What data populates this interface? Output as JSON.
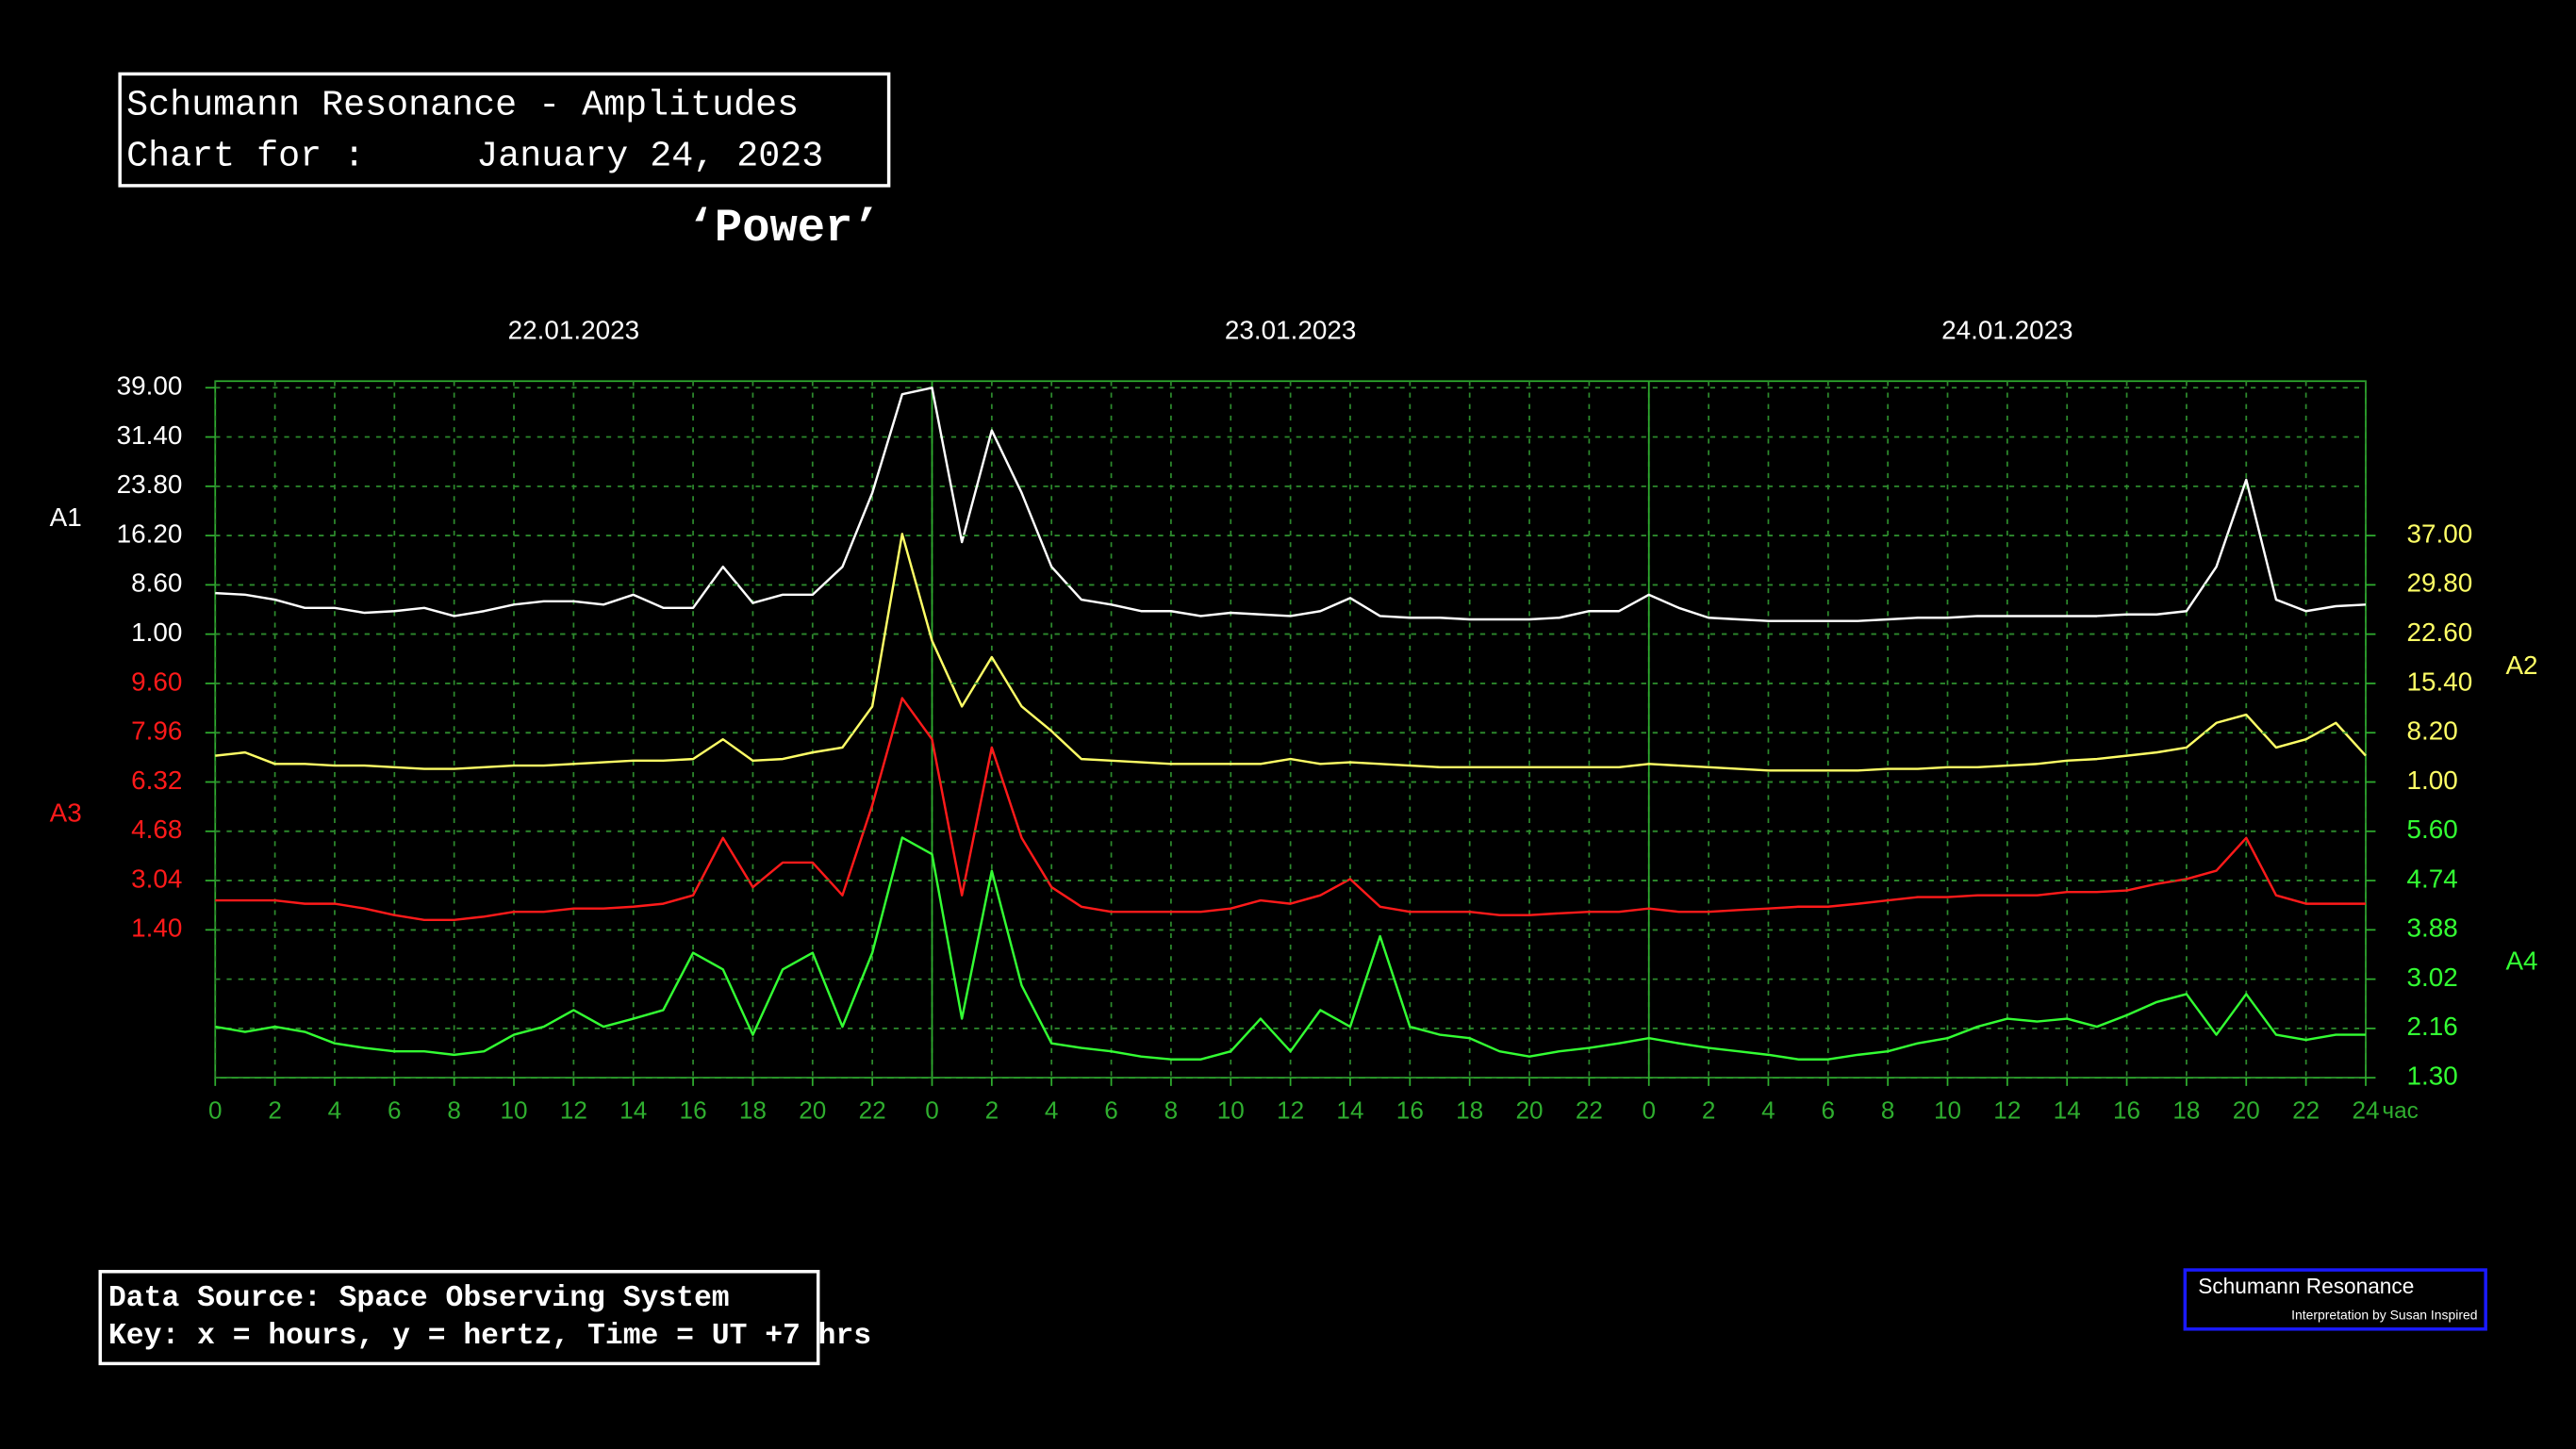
{
  "header": {
    "title": "Schumann Resonance - Amplitudes",
    "chart_for": "Chart for :",
    "date": "January 24, 2023",
    "subtitle": "‘Power’"
  },
  "footer": {
    "source": "Data Source: Space Observing System",
    "key": "Key: x = hours, y = hertz, Time = UT +7 hrs"
  },
  "logo": {
    "title": "Schumann Resonance",
    "credit": "Interpretation by Susan Inspired"
  },
  "chart_data": {
    "type": "line",
    "dates": [
      "22.01.2023",
      "23.01.2023",
      "24.01.2023"
    ],
    "x_unit": "час",
    "xlim": [
      0,
      72
    ],
    "xticks": [
      0,
      2,
      4,
      6,
      8,
      10,
      12,
      14,
      16,
      18,
      20,
      22,
      {
        "value": 24,
        "label": "0"
      },
      {
        "value": 26,
        "label": "2"
      },
      {
        "value": 28,
        "label": "4"
      },
      {
        "value": 30,
        "label": "6"
      },
      {
        "value": 32,
        "label": "8"
      },
      {
        "value": 34,
        "label": "10"
      },
      {
        "value": 36,
        "label": "12"
      },
      {
        "value": 38,
        "label": "14"
      },
      {
        "value": 40,
        "label": "16"
      },
      {
        "value": 42,
        "label": "18"
      },
      {
        "value": 44,
        "label": "20"
      },
      {
        "value": 46,
        "label": "22"
      },
      {
        "value": 48,
        "label": "0"
      },
      {
        "value": 50,
        "label": "2"
      },
      {
        "value": 52,
        "label": "4"
      },
      {
        "value": 54,
        "label": "6"
      },
      {
        "value": 56,
        "label": "8"
      },
      {
        "value": 58,
        "label": "10"
      },
      {
        "value": 60,
        "label": "12"
      },
      {
        "value": 62,
        "label": "14"
      },
      {
        "value": 64,
        "label": "16"
      },
      {
        "value": 66,
        "label": "18"
      },
      {
        "value": 68,
        "label": "20"
      },
      {
        "value": 70,
        "label": "22"
      },
      {
        "value": 72,
        "label": "24"
      }
    ],
    "grid": true,
    "x": [
      0,
      1,
      2,
      3,
      4,
      5,
      6,
      7,
      8,
      9,
      10,
      11,
      12,
      13,
      14,
      15,
      16,
      17,
      18,
      19,
      20,
      21,
      22,
      23,
      24,
      25,
      26,
      27,
      28,
      29,
      30,
      31,
      32,
      33,
      34,
      35,
      36,
      37,
      38,
      39,
      40,
      41,
      42,
      43,
      44,
      45,
      46,
      47,
      48,
      49,
      50,
      51,
      52,
      53,
      54,
      55,
      56,
      57,
      58,
      59,
      60,
      61,
      62,
      63,
      64,
      65,
      66,
      67,
      68,
      69,
      70,
      71,
      72
    ],
    "series": [
      {
        "name": "A1",
        "color": "#ffffff",
        "axis_side": "left",
        "ylim": [
          -67.4,
          39
        ],
        "yticks": [
          {
            "value": 39,
            "label": "39.00"
          },
          {
            "value": 31.4,
            "label": "31.40"
          },
          {
            "value": 23.8,
            "label": "23.80"
          },
          {
            "value": 16.2,
            "label": "16.20"
          },
          {
            "value": 8.6,
            "label": "8.60"
          },
          {
            "value": 1,
            "label": "1.00"
          }
        ],
        "values": [
          7.33,
          7.08,
          6.32,
          5.05,
          5.05,
          4.29,
          4.55,
          5.05,
          3.79,
          4.55,
          5.56,
          6.07,
          6.07,
          5.56,
          7.08,
          5.05,
          5.05,
          11.39,
          5.81,
          7.08,
          7.08,
          11.39,
          22.79,
          37.99,
          39.0,
          15.19,
          32.41,
          22.79,
          11.39,
          6.32,
          5.56,
          4.55,
          4.55,
          3.79,
          4.29,
          4.04,
          3.79,
          4.55,
          6.57,
          3.79,
          3.53,
          3.53,
          3.28,
          3.28,
          3.28,
          3.53,
          4.55,
          4.55,
          7.08,
          5.05,
          3.53,
          3.28,
          3.03,
          3.03,
          3.03,
          3.03,
          3.28,
          3.53,
          3.53,
          3.79,
          3.79,
          3.79,
          3.79,
          3.79,
          4.04,
          4.04,
          4.55,
          11.39,
          24.81,
          6.32,
          4.55,
          5.31,
          5.56
        ]
      },
      {
        "name": "A2",
        "color": "#ffff66",
        "axis_side": "right",
        "ylim": [
          -42.2,
          58.6
        ],
        "yticks": [
          {
            "value": 37,
            "label": "37.00"
          },
          {
            "value": 29.8,
            "label": "29.80"
          },
          {
            "value": 22.6,
            "label": "22.60"
          },
          {
            "value": 15.4,
            "label": "15.40"
          },
          {
            "value": 8.2,
            "label": "8.20"
          },
          {
            "value": 1,
            "label": "1.00"
          }
        ],
        "values": [
          4.84,
          5.32,
          3.64,
          3.64,
          3.4,
          3.4,
          3.16,
          2.92,
          2.92,
          3.16,
          3.4,
          3.4,
          3.64,
          3.88,
          4.12,
          4.12,
          4.36,
          7.24,
          4.12,
          4.36,
          5.32,
          6.04,
          12.04,
          37.24,
          21.64,
          12.04,
          19.24,
          12.04,
          8.44,
          4.36,
          4.12,
          3.88,
          3.64,
          3.64,
          3.64,
          3.64,
          4.36,
          3.64,
          3.88,
          3.64,
          3.4,
          3.16,
          3.16,
          3.16,
          3.16,
          3.16,
          3.16,
          3.16,
          3.64,
          3.4,
          3.16,
          2.92,
          2.68,
          2.68,
          2.68,
          2.68,
          2.92,
          2.92,
          3.16,
          3.16,
          3.4,
          3.64,
          4.12,
          4.36,
          4.84,
          5.32,
          6.04,
          9.64,
          10.84,
          6.04,
          7.24,
          9.64,
          4.84
        ]
      },
      {
        "name": "A3",
        "color": "#ff1a1a",
        "axis_side": "left",
        "ylim": [
          -3.52,
          19.44
        ],
        "yticks": [
          {
            "value": 9.6,
            "label": "9.60"
          },
          7.96,
          6.32,
          4.68,
          3.04,
          {
            "value": 1.4,
            "label": "1.40"
          }
        ],
        "values": [
          2.38,
          2.38,
          2.38,
          2.27,
          2.27,
          2.11,
          1.89,
          1.73,
          1.73,
          1.84,
          2.0,
          2.0,
          2.11,
          2.11,
          2.17,
          2.27,
          2.55,
          4.46,
          2.82,
          3.64,
          3.64,
          2.55,
          5.55,
          9.11,
          7.74,
          2.55,
          7.47,
          4.46,
          2.82,
          2.17,
          2.0,
          2.0,
          2.0,
          2.0,
          2.11,
          2.38,
          2.27,
          2.55,
          3.09,
          2.17,
          2.0,
          2.0,
          2.0,
          1.89,
          1.89,
          1.95,
          2.0,
          2.0,
          2.11,
          2.0,
          2.0,
          2.06,
          2.11,
          2.17,
          2.17,
          2.27,
          2.38,
          2.49,
          2.49,
          2.55,
          2.55,
          2.55,
          2.66,
          2.66,
          2.71,
          2.93,
          3.09,
          3.37,
          4.46,
          2.55,
          2.27,
          2.27,
          2.27
        ]
      },
      {
        "name": "A4",
        "color": "#33ff33",
        "axis_side": "right",
        "ylim": [
          1.3,
          13.34
        ],
        "yticks": [
          {
            "value": 5.6,
            "label": "5.60"
          },
          4.74,
          3.88,
          3.02,
          2.16,
          {
            "value": 1.3,
            "label": "1.30"
          }
        ],
        "values": [
          2.19,
          2.1,
          2.19,
          2.1,
          1.9,
          1.82,
          1.76,
          1.76,
          1.7,
          1.76,
          2.05,
          2.19,
          2.48,
          2.19,
          2.33,
          2.48,
          3.48,
          3.19,
          2.05,
          3.19,
          3.48,
          2.19,
          3.48,
          5.49,
          5.2,
          2.33,
          4.91,
          2.91,
          1.9,
          1.82,
          1.76,
          1.67,
          1.62,
          1.62,
          1.76,
          2.33,
          1.76,
          2.48,
          2.19,
          3.77,
          2.19,
          2.05,
          1.99,
          1.76,
          1.67,
          1.76,
          1.82,
          1.9,
          1.99,
          1.9,
          1.82,
          1.76,
          1.7,
          1.62,
          1.62,
          1.7,
          1.76,
          1.9,
          1.99,
          2.19,
          2.33,
          2.28,
          2.33,
          2.19,
          2.39,
          2.62,
          2.76,
          2.05,
          2.76,
          2.05,
          1.96,
          2.05,
          2.05
        ]
      }
    ]
  }
}
